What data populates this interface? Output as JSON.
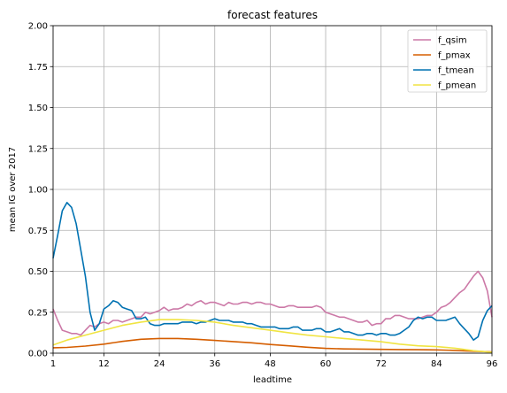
{
  "chart_data": {
    "type": "line",
    "title": "forecast features",
    "xlabel": "leadtime",
    "ylabel": "mean IG over 2017",
    "xlim": [
      1,
      96
    ],
    "ylim": [
      0,
      2.0
    ],
    "x_ticks": [
      1,
      12,
      24,
      36,
      48,
      60,
      72,
      84,
      96
    ],
    "y_ticks": [
      0.0,
      0.25,
      0.5,
      0.75,
      1.0,
      1.25,
      1.5,
      1.75,
      2.0
    ],
    "x_tick_labels": [
      "1",
      "12",
      "24",
      "36",
      "48",
      "60",
      "72",
      "84",
      "96"
    ],
    "y_tick_labels": [
      "0.00",
      "0.25",
      "0.50",
      "0.75",
      "1.00",
      "1.25",
      "1.50",
      "1.75",
      "2.00"
    ],
    "grid": true,
    "legend_position": "top-right",
    "series": [
      {
        "name": "f_qsim",
        "color": "#cc79a7",
        "x": [
          1,
          2,
          3,
          4,
          5,
          6,
          7,
          8,
          9,
          10,
          11,
          12,
          13,
          14,
          15,
          16,
          17,
          18,
          19,
          20,
          21,
          22,
          23,
          24,
          25,
          26,
          27,
          28,
          29,
          30,
          31,
          32,
          33,
          34,
          35,
          36,
          37,
          38,
          39,
          40,
          41,
          42,
          43,
          44,
          45,
          46,
          47,
          48,
          49,
          50,
          51,
          52,
          53,
          54,
          55,
          56,
          57,
          58,
          59,
          60,
          61,
          62,
          63,
          64,
          65,
          66,
          67,
          68,
          69,
          70,
          71,
          72,
          73,
          74,
          75,
          76,
          77,
          78,
          79,
          80,
          81,
          82,
          83,
          84,
          85,
          86,
          87,
          88,
          89,
          90,
          91,
          92,
          93,
          94,
          95,
          96
        ],
        "values": [
          0.27,
          0.2,
          0.14,
          0.13,
          0.12,
          0.12,
          0.11,
          0.14,
          0.17,
          0.16,
          0.18,
          0.19,
          0.18,
          0.2,
          0.2,
          0.19,
          0.2,
          0.21,
          0.22,
          0.22,
          0.25,
          0.24,
          0.25,
          0.26,
          0.28,
          0.26,
          0.27,
          0.27,
          0.28,
          0.3,
          0.29,
          0.31,
          0.32,
          0.3,
          0.31,
          0.31,
          0.3,
          0.29,
          0.31,
          0.3,
          0.3,
          0.31,
          0.31,
          0.3,
          0.31,
          0.31,
          0.3,
          0.3,
          0.29,
          0.28,
          0.28,
          0.29,
          0.29,
          0.28,
          0.28,
          0.28,
          0.28,
          0.29,
          0.28,
          0.25,
          0.24,
          0.23,
          0.22,
          0.22,
          0.21,
          0.2,
          0.19,
          0.19,
          0.2,
          0.17,
          0.18,
          0.18,
          0.21,
          0.21,
          0.23,
          0.23,
          0.22,
          0.21,
          0.21,
          0.21,
          0.22,
          0.23,
          0.23,
          0.25,
          0.28,
          0.29,
          0.31,
          0.34,
          0.37,
          0.39,
          0.43,
          0.47,
          0.5,
          0.46,
          0.38,
          0.22
        ]
      },
      {
        "name": "f_pmax",
        "color": "#d55e00",
        "x": [
          1,
          4,
          8,
          12,
          16,
          20,
          24,
          28,
          32,
          36,
          40,
          44,
          48,
          52,
          56,
          60,
          64,
          68,
          72,
          76,
          80,
          84,
          88,
          92,
          96
        ],
        "values": [
          0.033,
          0.035,
          0.043,
          0.055,
          0.072,
          0.085,
          0.09,
          0.09,
          0.085,
          0.078,
          0.071,
          0.063,
          0.053,
          0.045,
          0.036,
          0.029,
          0.026,
          0.025,
          0.023,
          0.022,
          0.021,
          0.02,
          0.017,
          0.012,
          0.008
        ]
      },
      {
        "name": "f_tmean",
        "color": "#0072b2",
        "x": [
          1,
          2,
          3,
          4,
          5,
          6,
          7,
          8,
          9,
          10,
          11,
          12,
          13,
          14,
          15,
          16,
          17,
          18,
          19,
          20,
          21,
          22,
          23,
          24,
          25,
          26,
          27,
          28,
          29,
          30,
          31,
          32,
          33,
          34,
          35,
          36,
          37,
          38,
          39,
          40,
          41,
          42,
          43,
          44,
          45,
          46,
          47,
          48,
          49,
          50,
          51,
          52,
          53,
          54,
          55,
          56,
          57,
          58,
          59,
          60,
          61,
          62,
          63,
          64,
          65,
          66,
          67,
          68,
          69,
          70,
          71,
          72,
          73,
          74,
          75,
          76,
          77,
          78,
          79,
          80,
          81,
          82,
          83,
          84,
          85,
          86,
          87,
          88,
          89,
          90,
          91,
          92,
          93,
          94,
          95,
          96
        ],
        "values": [
          0.58,
          0.72,
          0.87,
          0.92,
          0.89,
          0.79,
          0.63,
          0.47,
          0.25,
          0.14,
          0.18,
          0.27,
          0.29,
          0.32,
          0.31,
          0.28,
          0.27,
          0.26,
          0.21,
          0.21,
          0.22,
          0.18,
          0.17,
          0.17,
          0.18,
          0.18,
          0.18,
          0.18,
          0.19,
          0.19,
          0.19,
          0.18,
          0.19,
          0.19,
          0.2,
          0.21,
          0.2,
          0.2,
          0.2,
          0.19,
          0.19,
          0.19,
          0.18,
          0.18,
          0.17,
          0.16,
          0.16,
          0.16,
          0.16,
          0.15,
          0.15,
          0.15,
          0.16,
          0.16,
          0.14,
          0.14,
          0.14,
          0.15,
          0.15,
          0.13,
          0.13,
          0.14,
          0.15,
          0.13,
          0.13,
          0.12,
          0.11,
          0.11,
          0.12,
          0.12,
          0.11,
          0.12,
          0.12,
          0.11,
          0.11,
          0.12,
          0.14,
          0.16,
          0.2,
          0.22,
          0.21,
          0.22,
          0.22,
          0.2,
          0.2,
          0.2,
          0.21,
          0.22,
          0.18,
          0.15,
          0.12,
          0.08,
          0.1,
          0.2,
          0.26,
          0.29
        ]
      },
      {
        "name": "f_pmean",
        "color": "#f0e442",
        "x": [
          1,
          4,
          8,
          12,
          16,
          20,
          24,
          28,
          32,
          36,
          40,
          44,
          48,
          52,
          56,
          60,
          64,
          68,
          72,
          76,
          80,
          84,
          88,
          92,
          96
        ],
        "values": [
          0.05,
          0.08,
          0.11,
          0.14,
          0.17,
          0.19,
          0.205,
          0.205,
          0.2,
          0.19,
          0.17,
          0.155,
          0.14,
          0.125,
          0.11,
          0.1,
          0.09,
          0.08,
          0.07,
          0.055,
          0.045,
          0.04,
          0.03,
          0.015,
          0.005
        ]
      }
    ]
  }
}
